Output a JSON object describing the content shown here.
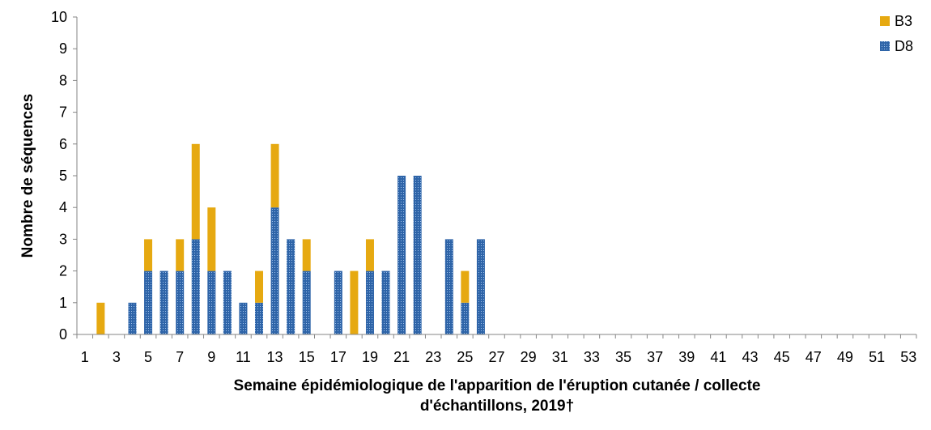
{
  "chart_data": {
    "type": "bar",
    "stacked": true,
    "title": "",
    "xlabel_lines": [
      "Semaine épidémiologique de l'apparition de l'éruption cutanée / collecte",
      "d'échantillons, 2019†"
    ],
    "ylabel": "Nombre de séquences",
    "ylim": [
      0,
      10
    ],
    "yticks": [
      0,
      1,
      2,
      3,
      4,
      5,
      6,
      7,
      8,
      9,
      10
    ],
    "x_start": 1,
    "x_end": 53,
    "xtick_labels": [
      "1",
      "3",
      "5",
      "7",
      "9",
      "11",
      "13",
      "15",
      "17",
      "19",
      "21",
      "23",
      "25",
      "27",
      "29",
      "31",
      "33",
      "35",
      "37",
      "39",
      "41",
      "43",
      "45",
      "47",
      "49",
      "51",
      "53"
    ],
    "grid": false,
    "legend_position": "top-right",
    "series": [
      {
        "name": "D8",
        "color": "#2e64a8",
        "pattern": "dotted",
        "points": [
          {
            "x": 4,
            "y": 1
          },
          {
            "x": 5,
            "y": 2
          },
          {
            "x": 6,
            "y": 2
          },
          {
            "x": 7,
            "y": 2
          },
          {
            "x": 8,
            "y": 3
          },
          {
            "x": 9,
            "y": 2
          },
          {
            "x": 10,
            "y": 2
          },
          {
            "x": 11,
            "y": 1
          },
          {
            "x": 12,
            "y": 1
          },
          {
            "x": 13,
            "y": 4
          },
          {
            "x": 14,
            "y": 3
          },
          {
            "x": 15,
            "y": 2
          },
          {
            "x": 17,
            "y": 2
          },
          {
            "x": 19,
            "y": 2
          },
          {
            "x": 20,
            "y": 2
          },
          {
            "x": 21,
            "y": 5
          },
          {
            "x": 22,
            "y": 5
          },
          {
            "x": 24,
            "y": 3
          },
          {
            "x": 25,
            "y": 1
          },
          {
            "x": 26,
            "y": 3
          }
        ]
      },
      {
        "name": "B3",
        "color": "#e6a911",
        "pattern": "solid",
        "points": [
          {
            "x": 2,
            "y": 1
          },
          {
            "x": 5,
            "y": 1
          },
          {
            "x": 7,
            "y": 1
          },
          {
            "x": 8,
            "y": 3
          },
          {
            "x": 9,
            "y": 2
          },
          {
            "x": 12,
            "y": 1
          },
          {
            "x": 13,
            "y": 2
          },
          {
            "x": 15,
            "y": 1
          },
          {
            "x": 18,
            "y": 2
          },
          {
            "x": 19,
            "y": 1
          },
          {
            "x": 25,
            "y": 1
          }
        ]
      }
    ],
    "legend_order": [
      "B3",
      "D8"
    ]
  }
}
